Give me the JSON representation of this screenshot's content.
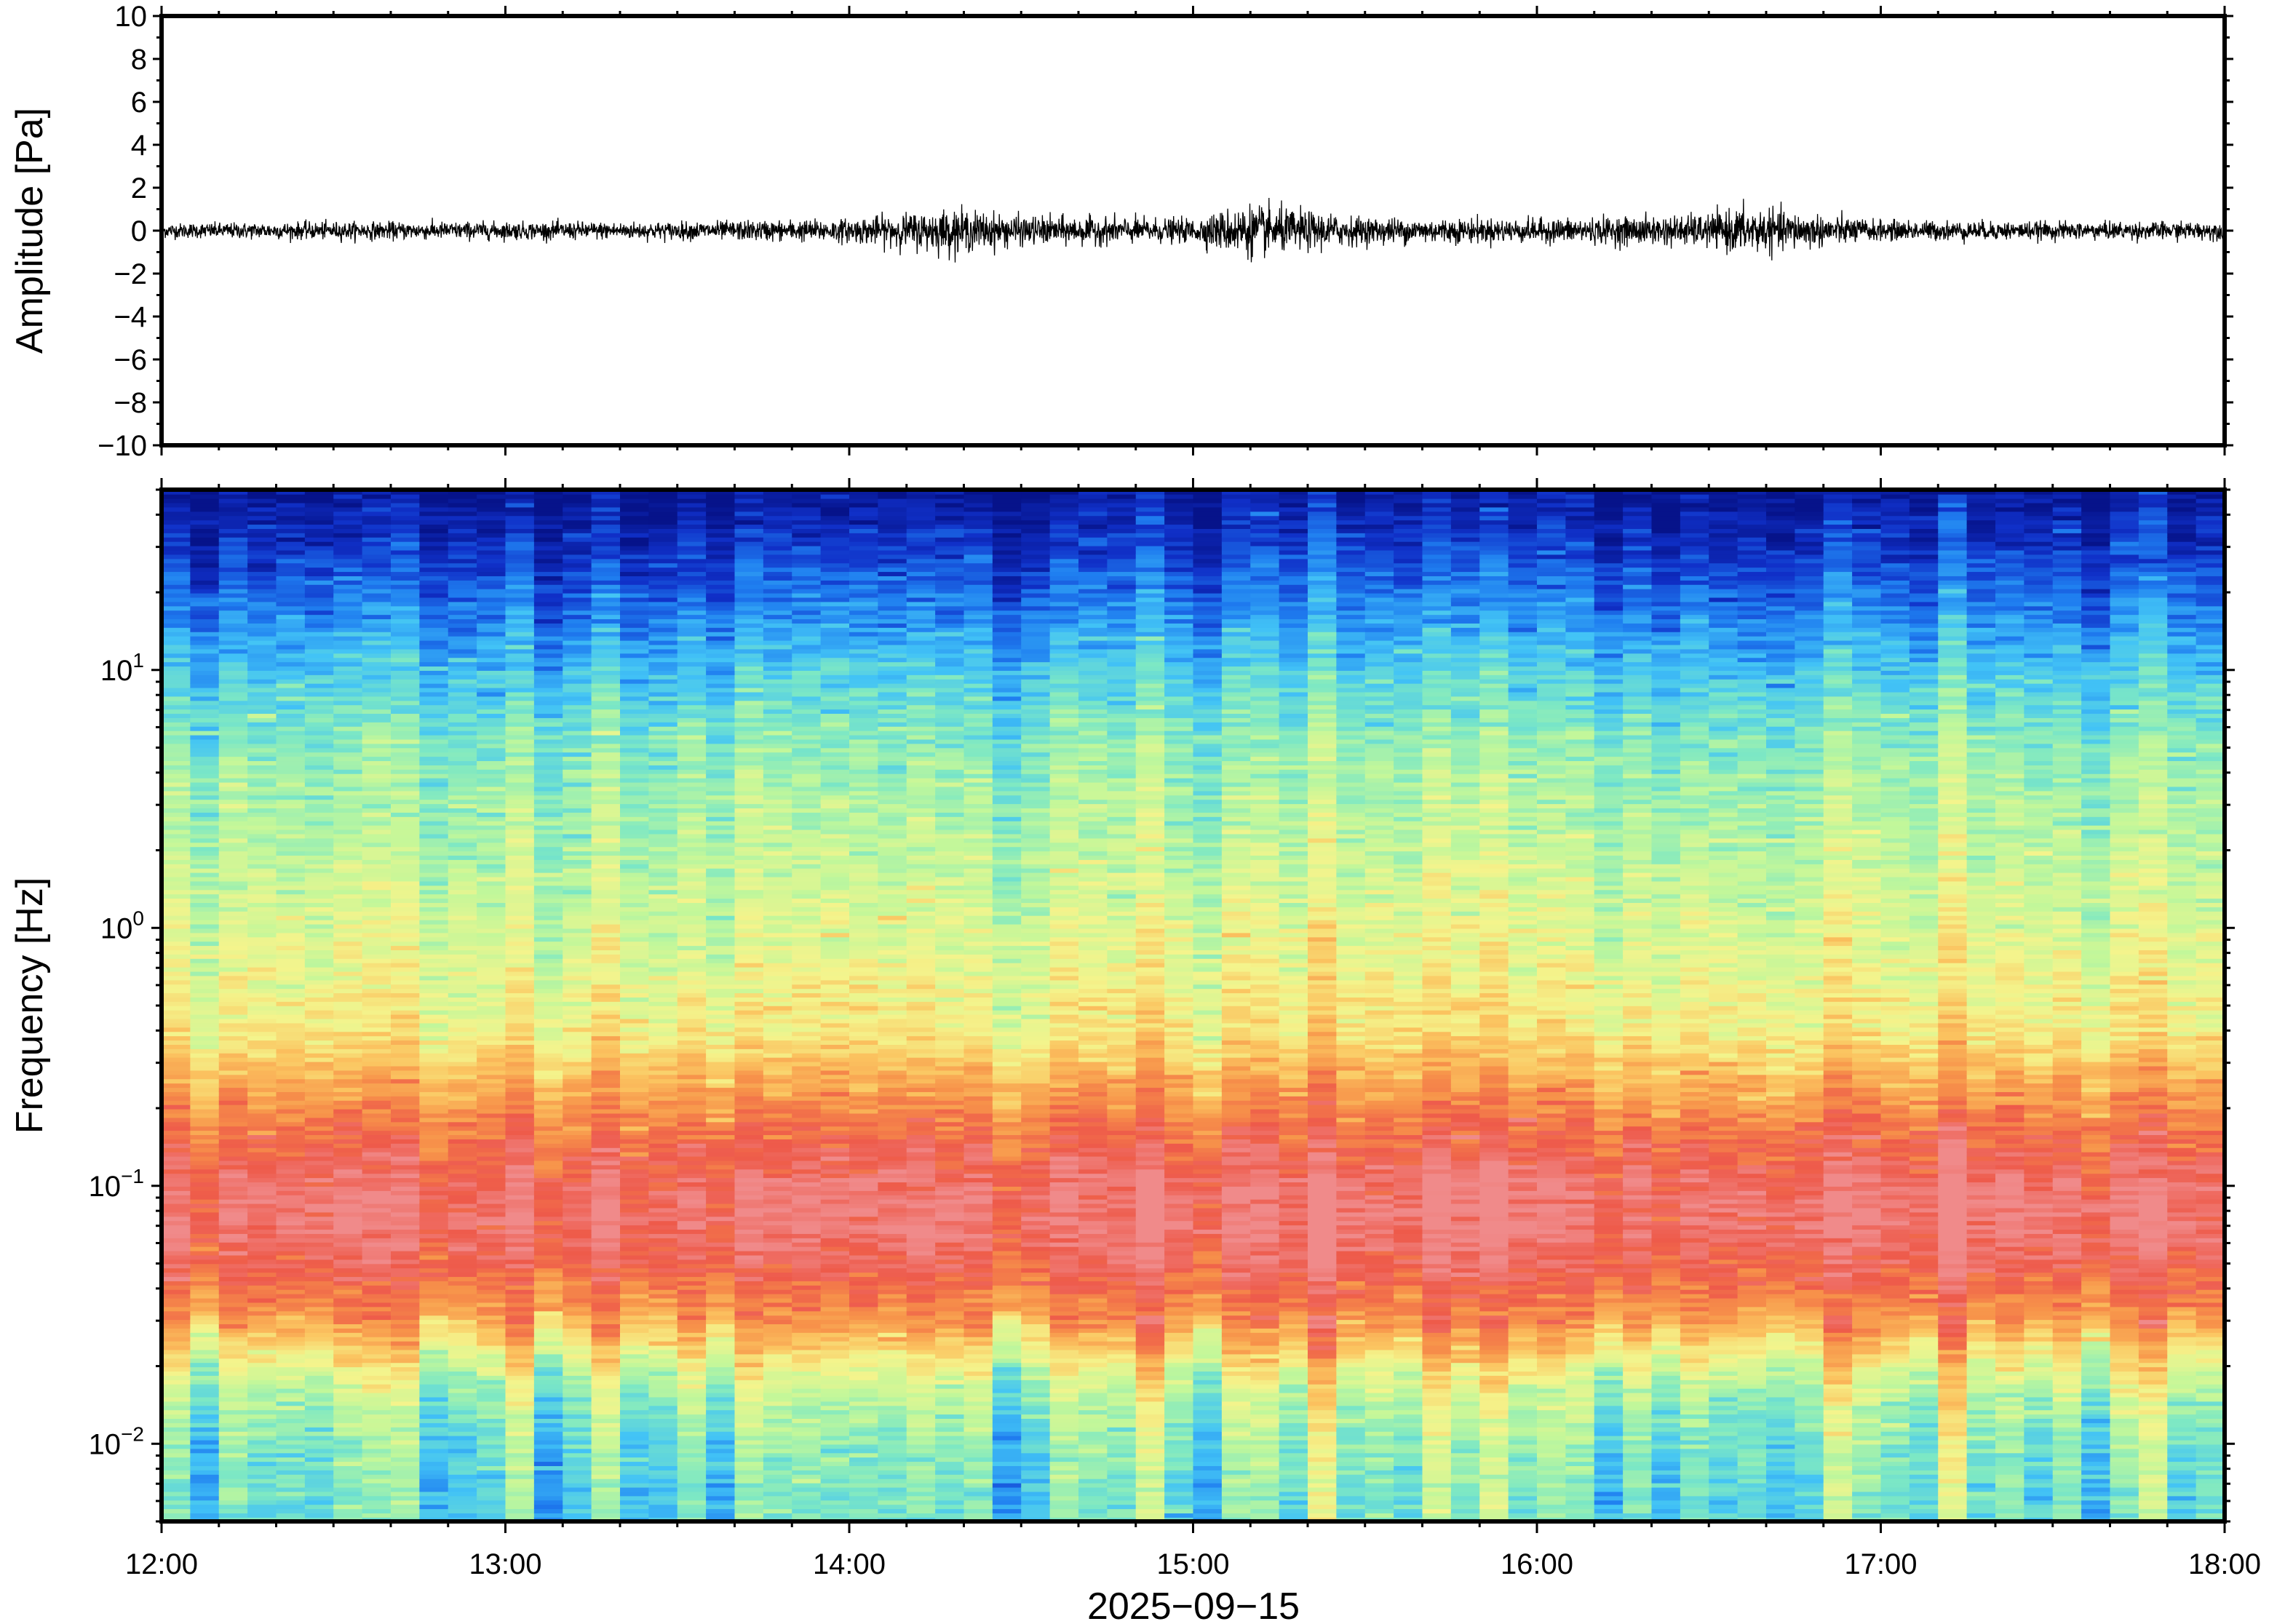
{
  "chart_data": [
    {
      "type": "line",
      "panel": "waveform",
      "ylabel": "Amplitude [Pa]",
      "ylim": [
        -10,
        10
      ],
      "yticks": [
        10,
        8,
        6,
        4,
        2,
        0,
        -2,
        -4,
        -6,
        -8,
        -10
      ],
      "ytick_labels": [
        "10",
        "8",
        "6",
        "4",
        "2",
        "0",
        "−2",
        "−4",
        "−6",
        "−8",
        "−10"
      ],
      "xlim": [
        "12:00",
        "18:00"
      ],
      "color": "#000000",
      "envelope": {
        "time_hours": [
          12.0,
          12.5,
          13.0,
          13.5,
          14.0,
          14.3,
          14.5,
          15.0,
          15.15,
          15.5,
          16.0,
          16.5,
          16.6,
          17.0,
          17.5,
          18.0
        ],
        "max_amplitude": [
          0.5,
          0.6,
          0.6,
          0.6,
          0.8,
          1.5,
          1.0,
          0.8,
          1.8,
          0.9,
          0.8,
          1.1,
          1.6,
          0.7,
          0.6,
          0.6
        ]
      }
    },
    {
      "type": "heatmap",
      "panel": "spectrogram",
      "ylabel": "Frequency [Hz]",
      "yscale": "log",
      "ylim": [
        0.005,
        50
      ],
      "yticks": [
        0.01,
        0.1,
        1,
        10
      ],
      "ytick_labels": [
        {
          "base": "10",
          "exp": "−2"
        },
        {
          "base": "10",
          "exp": "−1"
        },
        {
          "base": "10",
          "exp": "0"
        },
        {
          "base": "10",
          "exp": "1"
        }
      ],
      "xlabel": "2025−09−15",
      "xlim": [
        "12:00",
        "18:00"
      ],
      "xticks": [
        "12:00",
        "13:00",
        "14:00",
        "15:00",
        "16:00",
        "17:00",
        "18:00"
      ],
      "colormap": "rainbow",
      "colormap_stops": [
        "#06138a",
        "#1030c8",
        "#1f7ef0",
        "#42c3f6",
        "#7de8c4",
        "#c2f79a",
        "#f4f48c",
        "#fbc460",
        "#f7934a",
        "#ee5a4a",
        "#f08a8a"
      ],
      "frequency_profile_hz": [
        0.006,
        0.01,
        0.015,
        0.02,
        0.03,
        0.05,
        0.07,
        0.1,
        0.15,
        0.25,
        0.4,
        1,
        2,
        5,
        10,
        20,
        35,
        50
      ],
      "relative_level": [
        0.38,
        0.42,
        0.48,
        0.58,
        0.78,
        0.92,
        0.97,
        0.96,
        0.88,
        0.75,
        0.62,
        0.55,
        0.5,
        0.43,
        0.32,
        0.18,
        0.08,
        0.02
      ]
    }
  ]
}
